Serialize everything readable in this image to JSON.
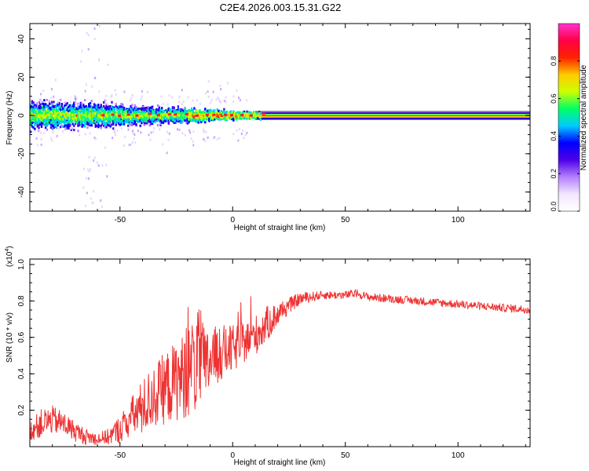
{
  "title": "C2E4.2026.003.15.31.G22",
  "chart_data": [
    {
      "type": "heatmap",
      "xlabel": "Height of straight line (km)",
      "ylabel": "Frequency (Hz)",
      "xlim": [
        -90,
        132
      ],
      "ylim": [
        -50,
        48
      ],
      "xticks": [
        -50,
        0,
        50,
        100
      ],
      "yticks": [
        -40,
        -20,
        0,
        20,
        40
      ],
      "colorbar": {
        "label": "Normalized spectral amplitude",
        "range": [
          0,
          1
        ],
        "ticks": [
          0.0,
          0.2,
          0.4,
          0.6,
          0.8
        ],
        "tick_labels": [
          "0.0",
          "0.2",
          "0.4",
          "0.6",
          "0.8"
        ],
        "colors": [
          "#ffffff",
          "#f2e6ff",
          "#b380ff",
          "#4d00e6",
          "#0000ff",
          "#00ccff",
          "#00ff66",
          "#ccff00",
          "#ffcc00",
          "#ff2200",
          "#ff0044",
          "#ff33cc"
        ]
      },
      "description_series": {
        "center_line_hz": 0,
        "spread_hz_by_height": [
          {
            "x": -85,
            "spread": 8
          },
          {
            "x": -60,
            "spread": 7
          },
          {
            "x": -40,
            "spread": 5
          },
          {
            "x": -20,
            "spread": 4
          },
          {
            "x": 0,
            "spread": 2.5
          },
          {
            "x": 10,
            "spread": 1.8
          },
          {
            "x": 130,
            "spread": 1.5
          }
        ]
      }
    },
    {
      "type": "line",
      "xlabel": "Height of straight line (km)",
      "ylabel": "SNR (10 * v/v)",
      "y_multiplier_label": "(x10",
      "y_multiplier_exp": "4",
      "y_multiplier_close": ")",
      "xlim": [
        -90,
        132
      ],
      "ylim": [
        0,
        1.03
      ],
      "xticks": [
        -50,
        0,
        50,
        100
      ],
      "yticks": [
        0.2,
        0.4,
        0.6,
        0.8,
        1.0
      ],
      "series": [
        {
          "name": "SNR",
          "color": "#ee3333",
          "x": [
            -90,
            -85,
            -80,
            -75,
            -70,
            -65,
            -60,
            -55,
            -50,
            -45,
            -40,
            -35,
            -30,
            -25,
            -20,
            -17,
            -15,
            -12,
            -10,
            -5,
            0,
            5,
            10,
            15,
            20,
            25,
            30,
            40,
            50,
            55,
            60,
            70,
            80,
            90,
            100,
            110,
            120,
            132
          ],
          "y": [
            0.08,
            0.12,
            0.14,
            0.12,
            0.08,
            0.05,
            0.04,
            0.05,
            0.09,
            0.15,
            0.2,
            0.26,
            0.3,
            0.34,
            0.38,
            0.42,
            0.44,
            0.4,
            0.46,
            0.5,
            0.52,
            0.56,
            0.6,
            0.66,
            0.72,
            0.77,
            0.81,
            0.83,
            0.83,
            0.84,
            0.82,
            0.81,
            0.8,
            0.79,
            0.78,
            0.77,
            0.76,
            0.75
          ],
          "noise": [
            0.05,
            0.07,
            0.07,
            0.06,
            0.05,
            0.04,
            0.03,
            0.04,
            0.07,
            0.1,
            0.14,
            0.16,
            0.18,
            0.2,
            0.22,
            0.25,
            0.26,
            0.2,
            0.16,
            0.14,
            0.12,
            0.1,
            0.1,
            0.09,
            0.06,
            0.04,
            0.03,
            0.02,
            0.02,
            0.02,
            0.02,
            0.02,
            0.02,
            0.02,
            0.02,
            0.02,
            0.02,
            0.02
          ]
        }
      ]
    }
  ]
}
